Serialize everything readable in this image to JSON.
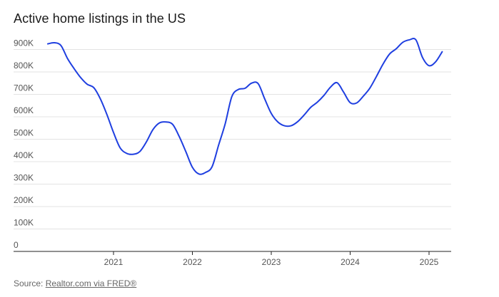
{
  "chart_data": {
    "type": "line",
    "title": "Active home listings in the US",
    "xlabel": "",
    "ylabel": "",
    "ylim": [
      0,
      950000
    ],
    "yticks": [
      0,
      100000,
      200000,
      300000,
      400000,
      500000,
      600000,
      700000,
      800000,
      900000
    ],
    "ytick_labels": [
      "0",
      "100K",
      "200K",
      "300K",
      "400K",
      "500K",
      "600K",
      "700K",
      "800K",
      "900K"
    ],
    "xtick_labels": [
      "2021",
      "2022",
      "2023",
      "2024",
      "2025"
    ],
    "xtick_years": [
      2021,
      2022,
      2023,
      2024,
      2025
    ],
    "grid": true,
    "legend": "none",
    "line_color": "#1f3fe0",
    "series": [
      {
        "x": [
          "2020-03",
          "2020-04",
          "2020-05",
          "2020-06",
          "2020-07",
          "2020-08",
          "2020-09",
          "2020-10",
          "2020-11",
          "2020-12",
          "2021-01",
          "2021-02",
          "2021-03",
          "2021-04",
          "2021-05",
          "2021-06",
          "2021-07",
          "2021-08",
          "2021-09",
          "2021-10",
          "2021-11",
          "2021-12",
          "2022-01",
          "2022-02",
          "2022-03",
          "2022-04",
          "2022-05",
          "2022-06",
          "2022-07",
          "2022-08",
          "2022-09",
          "2022-10",
          "2022-11",
          "2022-12",
          "2023-01",
          "2023-02",
          "2023-03",
          "2023-04",
          "2023-05",
          "2023-06",
          "2023-07",
          "2023-08",
          "2023-09",
          "2023-10",
          "2023-11",
          "2023-12",
          "2024-01",
          "2024-02",
          "2024-03",
          "2024-04",
          "2024-05",
          "2024-06",
          "2024-07",
          "2024-08",
          "2024-09",
          "2024-10",
          "2024-11",
          "2024-12",
          "2025-01",
          "2025-02",
          "2025-03"
        ],
        "values": [
          925000,
          930000,
          918000,
          860000,
          815000,
          775000,
          745000,
          730000,
          680000,
          610000,
          530000,
          462000,
          437000,
          433000,
          445000,
          488000,
          543000,
          573000,
          577000,
          566000,
          512000,
          445000,
          375000,
          345000,
          352000,
          378000,
          475000,
          570000,
          690000,
          722000,
          727000,
          750000,
          748000,
          680000,
          615000,
          577000,
          560000,
          560000,
          578000,
          608000,
          642000,
          665000,
          695000,
          732000,
          752000,
          710000,
          663000,
          662000,
          692000,
          728000,
          780000,
          835000,
          880000,
          903000,
          932000,
          943000,
          943000,
          865000,
          828000,
          845000,
          890000
        ]
      }
    ]
  },
  "source": {
    "prefix": "Source: ",
    "link_text": "Realtor.com via FRED®"
  }
}
